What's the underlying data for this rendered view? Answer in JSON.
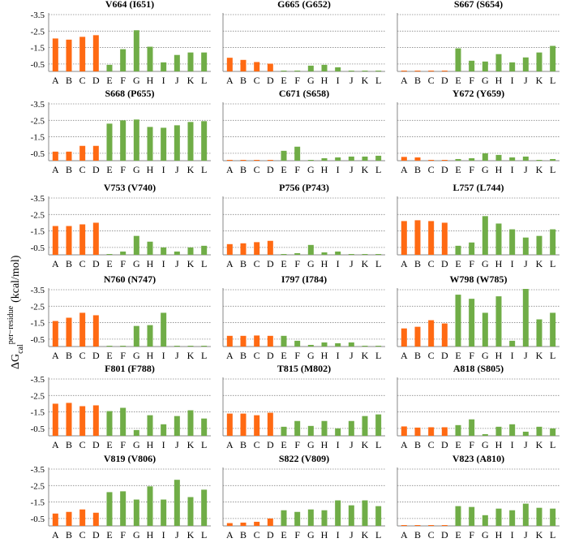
{
  "y_axis_label": {
    "prefix": "ΔG",
    "superscript": "per−residue",
    "subscript": "cal",
    "unit": "(kcal/mol)"
  },
  "colors": {
    "orange": "#FF6A13",
    "green": "#70AD47"
  },
  "chart_data": [
    {
      "type": "bar",
      "title": "V664 (I651)",
      "categories": [
        "A",
        "B",
        "C",
        "D",
        "E",
        "F",
        "G",
        "H",
        "I",
        "J",
        "K",
        "L"
      ],
      "values": [
        -2.05,
        -1.98,
        -2.15,
        -2.25,
        -0.45,
        -1.4,
        -2.55,
        -1.55,
        -0.6,
        -1.05,
        -1.2,
        -1.2
      ],
      "ylim": [
        -0.05,
        -3.5
      ],
      "yticks": [
        -3.5,
        -2.5,
        -1.5,
        -0.5
      ],
      "ytick_labels": [
        "-3.5",
        "-2.5",
        "-1.5",
        "-0.5"
      ],
      "grid": true
    },
    {
      "type": "bar",
      "title": "G665 (G652)",
      "categories": [
        "A",
        "B",
        "C",
        "D",
        "E",
        "F",
        "G",
        "H",
        "I",
        "J",
        "K",
        "L"
      ],
      "values": [
        -0.88,
        -0.75,
        -0.62,
        -0.52,
        -0.05,
        -0.1,
        -0.4,
        -0.45,
        -0.3,
        -0.05,
        -0.06,
        -0.05
      ],
      "ylim": [
        -0.05,
        -3.5
      ],
      "yticks": [
        -3.5,
        -2.5,
        -1.5,
        -0.5
      ],
      "ytick_labels": [],
      "grid": true
    },
    {
      "type": "bar",
      "title": "S667 (S654)",
      "categories": [
        "A",
        "B",
        "C",
        "D",
        "E",
        "F",
        "G",
        "H",
        "I",
        "J",
        "K",
        "L"
      ],
      "values": [
        -0.03,
        -0.03,
        -0.04,
        -0.04,
        -1.45,
        -0.7,
        -0.65,
        -1.1,
        -0.6,
        -0.9,
        -1.2,
        -1.6
      ],
      "ylim": [
        -0.05,
        -3.5
      ],
      "yticks": [
        -3.5,
        -2.5,
        -1.5,
        -0.5
      ],
      "ytick_labels": [],
      "grid": true
    },
    {
      "type": "bar",
      "title": "S668 (P655)",
      "categories": [
        "A",
        "B",
        "C",
        "D",
        "E",
        "F",
        "G",
        "H",
        "I",
        "J",
        "K",
        "L"
      ],
      "values": [
        -0.6,
        -0.6,
        -0.95,
        -0.95,
        -2.3,
        -2.5,
        -2.55,
        -2.1,
        -2.05,
        -2.2,
        -2.4,
        -2.45
      ],
      "ylim": [
        -0.05,
        -3.5
      ],
      "yticks": [
        -3.5,
        -2.5,
        -1.5,
        -0.5
      ],
      "ytick_labels": [
        "-3.5",
        "-2.5",
        "-1.5",
        "-0.5"
      ],
      "grid": true
    },
    {
      "type": "bar",
      "title": "C671 (S658)",
      "categories": [
        "A",
        "B",
        "C",
        "D",
        "E",
        "F",
        "G",
        "H",
        "I",
        "J",
        "K",
        "L"
      ],
      "values": [
        -0.02,
        -0.02,
        -0.02,
        -0.02,
        -0.65,
        -0.9,
        -0.05,
        -0.2,
        -0.25,
        -0.3,
        -0.3,
        -0.35
      ],
      "ylim": [
        -0.05,
        -3.5
      ],
      "yticks": [
        -3.5,
        -2.5,
        -1.5,
        -0.5
      ],
      "ytick_labels": [],
      "grid": true
    },
    {
      "type": "bar",
      "title": "Y672 (Y659)",
      "categories": [
        "A",
        "B",
        "C",
        "D",
        "E",
        "F",
        "G",
        "H",
        "I",
        "J",
        "K",
        "L"
      ],
      "values": [
        -0.28,
        -0.25,
        -0.1,
        -0.05,
        -0.15,
        -0.2,
        -0.5,
        -0.4,
        -0.25,
        -0.3,
        -0.1,
        -0.15
      ],
      "ylim": [
        -0.05,
        -3.5
      ],
      "yticks": [
        -3.5,
        -2.5,
        -1.5,
        -0.5
      ],
      "ytick_labels": [],
      "grid": true
    },
    {
      "type": "bar",
      "title": "V753 (V740)",
      "categories": [
        "A",
        "B",
        "C",
        "D",
        "E",
        "F",
        "G",
        "H",
        "I",
        "J",
        "K",
        "L"
      ],
      "values": [
        -1.8,
        -1.8,
        -1.9,
        -2.0,
        -0.03,
        -0.25,
        -1.2,
        -0.85,
        -0.5,
        -0.25,
        -0.5,
        -0.6
      ],
      "ylim": [
        -0.05,
        -3.5
      ],
      "yticks": [
        -3.5,
        -2.5,
        -1.5,
        -0.5
      ],
      "ytick_labels": [
        "-3.5",
        "-2.5",
        "-1.5",
        "-0.5"
      ],
      "grid": true
    },
    {
      "type": "bar",
      "title": "P756 (P743)",
      "categories": [
        "A",
        "B",
        "C",
        "D",
        "E",
        "F",
        "G",
        "H",
        "I",
        "J",
        "K",
        "L"
      ],
      "values": [
        -0.7,
        -0.75,
        -0.82,
        -0.9,
        -0.03,
        -0.15,
        -0.65,
        -0.2,
        -0.25,
        -0.05,
        -0.06,
        -0.05
      ],
      "ylim": [
        -0.05,
        -3.5
      ],
      "yticks": [
        -3.5,
        -2.5,
        -1.5,
        -0.5
      ],
      "ytick_labels": [],
      "grid": true
    },
    {
      "type": "bar",
      "title": "L757 (L744)",
      "categories": [
        "A",
        "B",
        "C",
        "D",
        "E",
        "F",
        "G",
        "H",
        "I",
        "J",
        "K",
        "L"
      ],
      "values": [
        -2.1,
        -2.15,
        -2.1,
        -2.0,
        -0.6,
        -0.8,
        -2.4,
        -1.95,
        -1.6,
        -1.1,
        -1.2,
        -1.6
      ],
      "ylim": [
        -0.05,
        -3.5
      ],
      "yticks": [
        -3.5,
        -2.5,
        -1.5,
        -0.5
      ],
      "ytick_labels": [],
      "grid": true
    },
    {
      "type": "bar",
      "title": "N760 (N747)",
      "categories": [
        "A",
        "B",
        "C",
        "D",
        "E",
        "F",
        "G",
        "H",
        "I",
        "J",
        "K",
        "L"
      ],
      "values": [
        -1.6,
        -1.8,
        -2.1,
        -1.95,
        -0.02,
        -0.05,
        -1.3,
        -1.35,
        -2.1,
        -0.03,
        -0.07,
        -0.07
      ],
      "ylim": [
        -0.05,
        -3.5
      ],
      "yticks": [
        -3.5,
        -2.5,
        -1.5,
        -0.5
      ],
      "ytick_labels": [
        "-3.5",
        "-2.5",
        "-1.5",
        "-0.5"
      ],
      "grid": true
    },
    {
      "type": "bar",
      "title": "I797 (I784)",
      "categories": [
        "A",
        "B",
        "C",
        "D",
        "E",
        "F",
        "G",
        "H",
        "I",
        "J",
        "K",
        "L"
      ],
      "values": [
        -0.7,
        -0.7,
        -0.72,
        -0.7,
        -0.7,
        -0.4,
        -0.15,
        -0.3,
        -0.25,
        -0.3,
        -0.1,
        -0.05
      ],
      "ylim": [
        -0.05,
        -3.5
      ],
      "yticks": [
        -3.5,
        -2.5,
        -1.5,
        -0.5
      ],
      "ytick_labels": [],
      "grid": true
    },
    {
      "type": "bar",
      "title": "W798 (W785)",
      "categories": [
        "A",
        "B",
        "C",
        "D",
        "E",
        "F",
        "G",
        "H",
        "I",
        "J",
        "K",
        "L"
      ],
      "values": [
        -1.15,
        -1.25,
        -1.65,
        -1.45,
        -3.2,
        -2.95,
        -2.1,
        -3.1,
        -0.4,
        -3.55,
        -1.7,
        -2.1
      ],
      "ylim": [
        -0.05,
        -3.5
      ],
      "yticks": [
        -3.5,
        -2.5,
        -1.5,
        -0.5
      ],
      "ytick_labels": [],
      "grid": true
    },
    {
      "type": "bar",
      "title": "F801 (F788)",
      "categories": [
        "A",
        "B",
        "C",
        "D",
        "E",
        "F",
        "G",
        "H",
        "I",
        "J",
        "K",
        "L"
      ],
      "values": [
        -2.0,
        -2.05,
        -1.85,
        -1.9,
        -1.55,
        -1.75,
        -0.4,
        -1.3,
        -0.75,
        -1.25,
        -1.6,
        -1.1
      ],
      "ylim": [
        -0.05,
        -3.5
      ],
      "yticks": [
        -3.5,
        -2.5,
        -1.5,
        -0.5
      ],
      "ytick_labels": [
        "-3.5",
        "-2.5",
        "-1.5",
        "-0.5"
      ],
      "grid": true
    },
    {
      "type": "bar",
      "title": "T815 (M802)",
      "categories": [
        "A",
        "B",
        "C",
        "D",
        "E",
        "F",
        "G",
        "H",
        "I",
        "J",
        "K",
        "L"
      ],
      "values": [
        -1.4,
        -1.4,
        -1.3,
        -1.45,
        -0.6,
        -0.95,
        -0.65,
        -0.95,
        -0.5,
        -0.95,
        -1.25,
        -1.35
      ],
      "ylim": [
        -0.05,
        -3.5
      ],
      "yticks": [
        -3.5,
        -2.5,
        -1.5,
        -0.5
      ],
      "ytick_labels": [],
      "grid": true
    },
    {
      "type": "bar",
      "title": "A818 (S805)",
      "categories": [
        "A",
        "B",
        "C",
        "D",
        "E",
        "F",
        "G",
        "H",
        "I",
        "J",
        "K",
        "L"
      ],
      "values": [
        -0.62,
        -0.55,
        -0.57,
        -0.57,
        -0.7,
        -1.05,
        -0.15,
        -0.6,
        -0.75,
        -0.3,
        -0.6,
        -0.5
      ],
      "ylim": [
        -0.05,
        -3.5
      ],
      "yticks": [
        -3.5,
        -2.5,
        -1.5,
        -0.5
      ],
      "ytick_labels": [],
      "grid": true
    },
    {
      "type": "bar",
      "title": "V819 (V806)",
      "categories": [
        "A",
        "B",
        "C",
        "D",
        "E",
        "F",
        "G",
        "H",
        "I",
        "J",
        "K",
        "L"
      ],
      "values": [
        -0.8,
        -0.9,
        -1.05,
        -0.85,
        -2.1,
        -2.15,
        -1.65,
        -2.45,
        -1.65,
        -2.85,
        -1.8,
        -2.25
      ],
      "ylim": [
        -0.05,
        -3.5
      ],
      "yticks": [
        -3.5,
        -2.5,
        -1.5,
        -0.5
      ],
      "ytick_labels": [
        "-3.5",
        "-2.5",
        "-1.5",
        "-0.5"
      ],
      "grid": true
    },
    {
      "type": "bar",
      "title": "S822 (V809)",
      "categories": [
        "A",
        "B",
        "C",
        "D",
        "E",
        "F",
        "G",
        "H",
        "I",
        "J",
        "K",
        "L"
      ],
      "values": [
        -0.22,
        -0.25,
        -0.3,
        -0.5,
        -1.0,
        -0.9,
        -1.05,
        -1.0,
        -1.6,
        -1.3,
        -1.6,
        -1.25
      ],
      "ylim": [
        -0.05,
        -3.5
      ],
      "yticks": [
        -3.5,
        -2.5,
        -1.5,
        -0.5
      ],
      "ytick_labels": [],
      "grid": true
    },
    {
      "type": "bar",
      "title": "V823 (A810)",
      "categories": [
        "A",
        "B",
        "C",
        "D",
        "E",
        "F",
        "G",
        "H",
        "I",
        "J",
        "K",
        "L"
      ],
      "values": [
        -0.03,
        -0.03,
        -0.04,
        -0.05,
        -1.25,
        -1.2,
        -0.7,
        -1.1,
        -1.0,
        -1.4,
        -1.15,
        -1.1
      ],
      "ylim": [
        -0.05,
        -3.5
      ],
      "yticks": [
        -3.5,
        -2.5,
        -1.5,
        -0.5
      ],
      "ytick_labels": [],
      "grid": true
    }
  ]
}
